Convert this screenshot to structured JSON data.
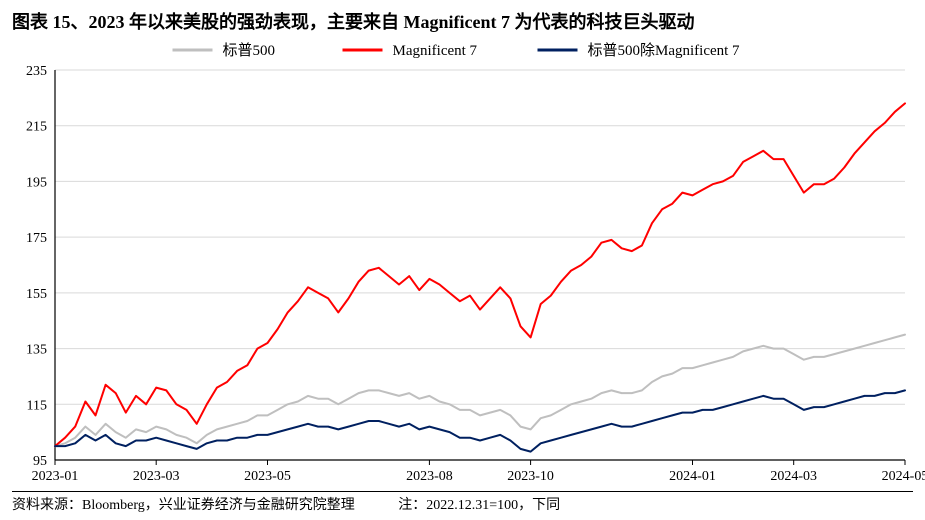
{
  "title": "图表 15、2023 年以来美股的强劲表现，主要来自 Magnificent 7 为代表的科技巨头驱动",
  "footer_source": "资料来源：Bloomberg，兴业证券经济与金融研究院整理",
  "footer_note": "注：2022.12.31=100，下同",
  "chart": {
    "type": "line",
    "background_color": "#ffffff",
    "plot_border_color": "#000000",
    "grid_color": "#d9d9d9",
    "axis_label_fontsize": 14,
    "legend_fontsize": 15,
    "title_fontsize": 18,
    "line_width": 2,
    "y": {
      "min": 95,
      "max": 235,
      "ticks": [
        95,
        115,
        135,
        155,
        175,
        195,
        215,
        235
      ]
    },
    "x": {
      "categories": [
        "2023-01",
        "2023-03",
        "2023-05",
        "2023-08",
        "2023-10",
        "2024-01",
        "2024-03",
        "2024-05"
      ],
      "tick_indices": [
        0,
        10,
        21,
        37,
        47,
        63,
        73,
        84
      ]
    },
    "legend": {
      "position": "top-center",
      "items": [
        {
          "label": "标普500",
          "color": "#bfbfbf"
        },
        {
          "label": "Magnificent 7",
          "color": "#ff0000"
        },
        {
          "label": "标普500除Magnificent 7",
          "color": "#002060"
        }
      ]
    },
    "series": [
      {
        "name": "标普500",
        "color": "#bfbfbf",
        "values": [
          100,
          101,
          103,
          107,
          104,
          108,
          105,
          103,
          106,
          105,
          107,
          106,
          104,
          103,
          101,
          104,
          106,
          107,
          108,
          109,
          111,
          111,
          113,
          115,
          116,
          118,
          117,
          117,
          115,
          117,
          119,
          120,
          120,
          119,
          118,
          119,
          117,
          118,
          116,
          115,
          113,
          113,
          111,
          112,
          113,
          111,
          107,
          106,
          110,
          111,
          113,
          115,
          116,
          117,
          119,
          120,
          119,
          119,
          120,
          123,
          125,
          126,
          128,
          128,
          129,
          130,
          131,
          132,
          134,
          135,
          136,
          135,
          135,
          133,
          131,
          132,
          132,
          133,
          134,
          135,
          136,
          137,
          138,
          139,
          140
        ]
      },
      {
        "name": "Magnificent 7",
        "color": "#ff0000",
        "values": [
          100,
          103,
          107,
          116,
          111,
          122,
          119,
          112,
          118,
          115,
          121,
          120,
          115,
          113,
          108,
          115,
          121,
          123,
          127,
          129,
          135,
          137,
          142,
          148,
          152,
          157,
          155,
          153,
          148,
          153,
          159,
          163,
          164,
          161,
          158,
          161,
          156,
          160,
          158,
          155,
          152,
          154,
          149,
          153,
          157,
          153,
          143,
          139,
          151,
          154,
          159,
          163,
          165,
          168,
          173,
          174,
          171,
          170,
          172,
          180,
          185,
          187,
          191,
          190,
          192,
          194,
          195,
          197,
          202,
          204,
          206,
          203,
          203,
          197,
          191,
          194,
          194,
          196,
          200,
          205,
          209,
          213,
          216,
          220,
          223
        ]
      },
      {
        "name": "标普500除Magnificent 7",
        "color": "#002060",
        "values": [
          100,
          100,
          101,
          104,
          102,
          104,
          101,
          100,
          102,
          102,
          103,
          102,
          101,
          100,
          99,
          101,
          102,
          102,
          103,
          103,
          104,
          104,
          105,
          106,
          107,
          108,
          107,
          107,
          106,
          107,
          108,
          109,
          109,
          108,
          107,
          108,
          106,
          107,
          106,
          105,
          103,
          103,
          102,
          103,
          104,
          102,
          99,
          98,
          101,
          102,
          103,
          104,
          105,
          106,
          107,
          108,
          107,
          107,
          108,
          109,
          110,
          111,
          112,
          112,
          113,
          113,
          114,
          115,
          116,
          117,
          118,
          117,
          117,
          115,
          113,
          114,
          114,
          115,
          116,
          117,
          118,
          118,
          119,
          119,
          120
        ]
      }
    ]
  }
}
